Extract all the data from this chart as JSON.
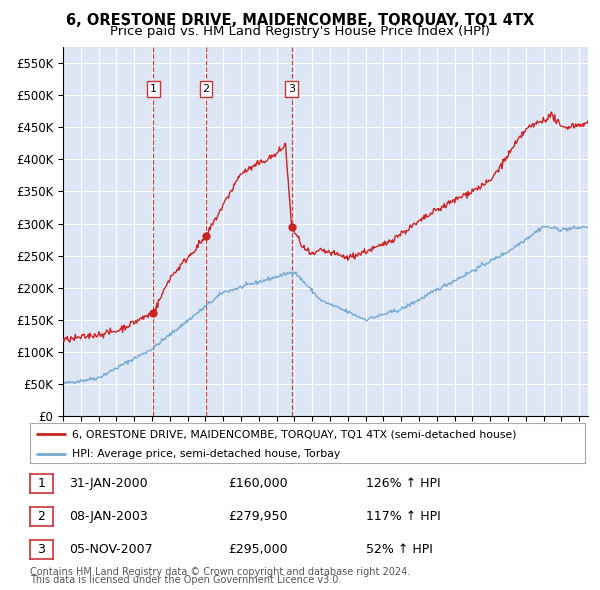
{
  "title": "6, ORESTONE DRIVE, MAIDENCOMBE, TORQUAY, TQ1 4TX",
  "subtitle": "Price paid vs. HM Land Registry's House Price Index (HPI)",
  "legend_line1": "6, ORESTONE DRIVE, MAIDENCOMBE, TORQUAY, TQ1 4TX (semi-detached house)",
  "legend_line2": "HPI: Average price, semi-detached house, Torbay",
  "footer1": "Contains HM Land Registry data © Crown copyright and database right 2024.",
  "footer2": "This data is licensed under the Open Government Licence v3.0.",
  "sale_points": [
    {
      "label": "1",
      "date": "31-JAN-2000",
      "price": 160000,
      "pct": "126%",
      "x": 2000.08
    },
    {
      "label": "2",
      "date": "08-JAN-2003",
      "price": 279950,
      "pct": "117%",
      "x": 2003.03
    },
    {
      "label": "3",
      "date": "05-NOV-2007",
      "price": 295000,
      "pct": "52%",
      "x": 2007.84
    }
  ],
  "vline_color": "#cc3333",
  "hpi_color": "#7aaad0",
  "price_color": "#cc2222",
  "bg_color": "#dce6f5",
  "grid_color": "#ffffff",
  "ylim": [
    0,
    575000
  ],
  "yticks": [
    0,
    50000,
    100000,
    150000,
    200000,
    250000,
    300000,
    350000,
    400000,
    450000,
    500000,
    550000
  ],
  "xlim_start": 1995,
  "xlim_end": 2024.5,
  "title_fontsize": 10.5,
  "subtitle_fontsize": 9.5
}
